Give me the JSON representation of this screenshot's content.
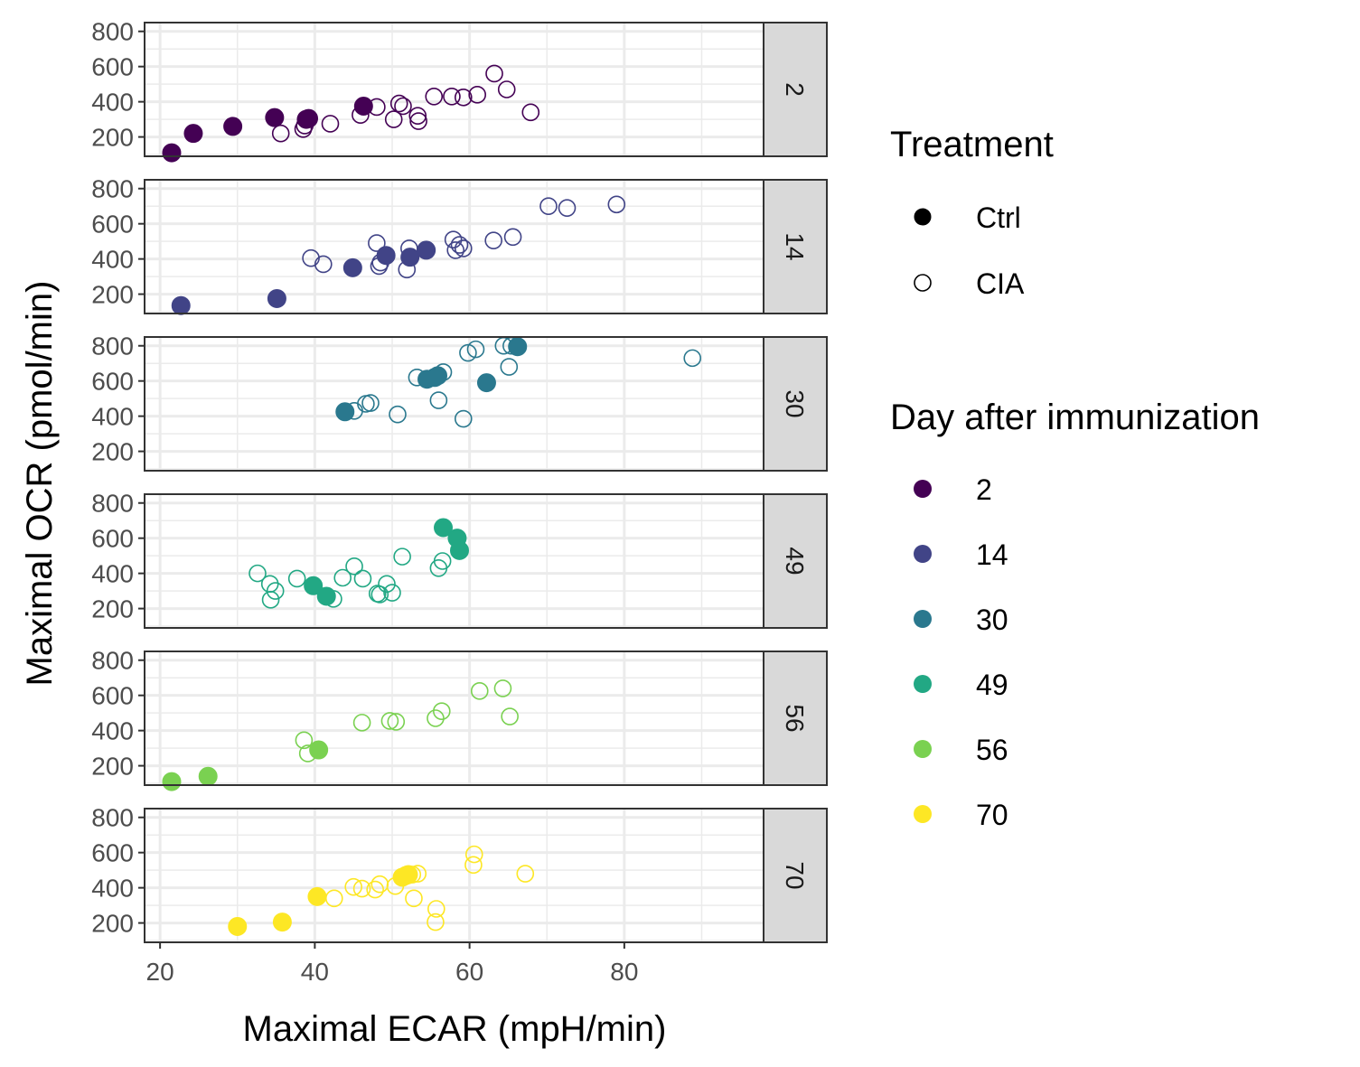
{
  "chart_data": {
    "type": "scatter",
    "xlabel": "Maximal ECAR (mpH/min)",
    "ylabel": "Maximal OCR (pmol/min)",
    "xlim": [
      18,
      98
    ],
    "ylim": [
      90,
      850
    ],
    "xticks": [
      20,
      40,
      60,
      80
    ],
    "yticks": [
      200,
      400,
      600,
      800
    ],
    "grid": true,
    "legend_position": "right",
    "treatment_legend": {
      "title": "Treatment",
      "entries": [
        {
          "label": "Ctrl",
          "shape": "filled-circle"
        },
        {
          "label": "CIA",
          "shape": "open-circle"
        }
      ]
    },
    "day_legend": {
      "title": "Day after immunization",
      "entries": [
        {
          "label": "2",
          "color": "#440154"
        },
        {
          "label": "14",
          "color": "#414487"
        },
        {
          "label": "30",
          "color": "#2A788E"
        },
        {
          "label": "49",
          "color": "#22A884"
        },
        {
          "label": "56",
          "color": "#7AD151"
        },
        {
          "label": "70",
          "color": "#FDE725"
        }
      ]
    },
    "panels": [
      {
        "label": "2",
        "color": "#440154",
        "ctrl": [
          [
            21.5,
            110
          ],
          [
            24.3,
            220
          ],
          [
            29.4,
            260
          ],
          [
            34.8,
            310
          ],
          [
            38.9,
            300
          ],
          [
            39.2,
            305
          ],
          [
            46.3,
            375
          ]
        ],
        "cia": [
          [
            35.6,
            220
          ],
          [
            38.5,
            245
          ],
          [
            38.7,
            265
          ],
          [
            42.0,
            275
          ],
          [
            45.9,
            325
          ],
          [
            48.0,
            370
          ],
          [
            50.2,
            300
          ],
          [
            50.9,
            390
          ],
          [
            51.4,
            375
          ],
          [
            53.3,
            320
          ],
          [
            53.4,
            290
          ],
          [
            55.4,
            430
          ],
          [
            57.7,
            430
          ],
          [
            59.2,
            425
          ],
          [
            61.0,
            440
          ],
          [
            63.2,
            560
          ],
          [
            64.8,
            470
          ],
          [
            67.9,
            340
          ]
        ]
      },
      {
        "label": "14",
        "color": "#414487",
        "ctrl": [
          [
            22.7,
            135
          ],
          [
            35.1,
            175
          ],
          [
            44.9,
            350
          ],
          [
            49.2,
            420
          ],
          [
            52.3,
            410
          ],
          [
            54.4,
            450
          ]
        ],
        "cia": [
          [
            39.5,
            405
          ],
          [
            41.1,
            370
          ],
          [
            48.0,
            490
          ],
          [
            48.3,
            360
          ],
          [
            48.5,
            380
          ],
          [
            51.9,
            340
          ],
          [
            52.2,
            460
          ],
          [
            57.9,
            510
          ],
          [
            58.2,
            450
          ],
          [
            58.7,
            480
          ],
          [
            59.2,
            460
          ],
          [
            63.1,
            505
          ],
          [
            65.6,
            525
          ],
          [
            70.2,
            700
          ],
          [
            72.6,
            690
          ],
          [
            79.0,
            710
          ]
        ]
      },
      {
        "label": "30",
        "color": "#2A788E",
        "ctrl": [
          [
            43.9,
            425
          ],
          [
            54.5,
            610
          ],
          [
            55.5,
            620
          ],
          [
            55.9,
            630
          ],
          [
            62.2,
            590
          ],
          [
            66.2,
            795
          ]
        ],
        "cia": [
          [
            45.1,
            430
          ],
          [
            46.6,
            470
          ],
          [
            47.2,
            475
          ],
          [
            50.7,
            410
          ],
          [
            53.2,
            620
          ],
          [
            56.0,
            490
          ],
          [
            56.6,
            650
          ],
          [
            59.2,
            385
          ],
          [
            59.8,
            760
          ],
          [
            60.8,
            780
          ],
          [
            64.4,
            800
          ],
          [
            65.1,
            680
          ],
          [
            65.4,
            800
          ],
          [
            88.8,
            730
          ]
        ]
      },
      {
        "label": "49",
        "color": "#22A884",
        "ctrl": [
          [
            39.8,
            330
          ],
          [
            41.5,
            270
          ],
          [
            56.6,
            660
          ],
          [
            58.4,
            600
          ],
          [
            58.7,
            530
          ]
        ],
        "cia": [
          [
            32.6,
            400
          ],
          [
            34.2,
            340
          ],
          [
            34.3,
            250
          ],
          [
            34.9,
            300
          ],
          [
            37.7,
            370
          ],
          [
            42.4,
            255
          ],
          [
            43.6,
            375
          ],
          [
            45.1,
            440
          ],
          [
            46.2,
            370
          ],
          [
            48.1,
            285
          ],
          [
            48.4,
            280
          ],
          [
            49.3,
            340
          ],
          [
            50.0,
            290
          ],
          [
            51.3,
            495
          ],
          [
            56.0,
            430
          ],
          [
            56.5,
            470
          ]
        ]
      },
      {
        "label": "56",
        "color": "#7AD151",
        "ctrl": [
          [
            21.5,
            110
          ],
          [
            26.2,
            140
          ],
          [
            40.5,
            290
          ]
        ],
        "cia": [
          [
            38.6,
            345
          ],
          [
            39.1,
            270
          ],
          [
            46.1,
            445
          ],
          [
            49.7,
            455
          ],
          [
            50.5,
            450
          ],
          [
            55.6,
            470
          ],
          [
            56.4,
            510
          ],
          [
            61.3,
            625
          ],
          [
            64.3,
            640
          ],
          [
            65.2,
            480
          ]
        ]
      },
      {
        "label": "70",
        "color": "#FDE725",
        "ctrl": [
          [
            30.0,
            180
          ],
          [
            35.8,
            205
          ],
          [
            40.3,
            350
          ],
          [
            51.3,
            460
          ],
          [
            51.8,
            470
          ],
          [
            52.1,
            475
          ]
        ],
        "cia": [
          [
            42.5,
            340
          ],
          [
            45.0,
            405
          ],
          [
            46.1,
            395
          ],
          [
            47.8,
            390
          ],
          [
            48.4,
            420
          ],
          [
            50.4,
            410
          ],
          [
            52.6,
            475
          ],
          [
            52.8,
            340
          ],
          [
            53.3,
            480
          ],
          [
            55.6,
            205
          ],
          [
            55.7,
            280
          ],
          [
            60.5,
            530
          ],
          [
            60.6,
            590
          ],
          [
            67.2,
            480
          ]
        ]
      }
    ]
  }
}
